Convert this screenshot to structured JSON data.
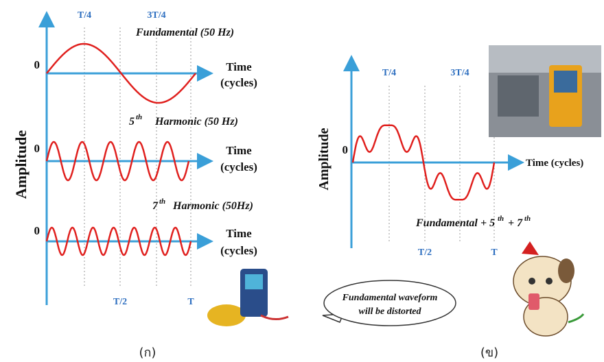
{
  "left": {
    "axis_label": "Amplitude",
    "caption": "(ก)",
    "markers": {
      "t4": "T/4",
      "t34": "3T/4",
      "t2": "T/2",
      "t": "T"
    },
    "waves": [
      {
        "zero": "0",
        "title": "Fundamental (50 Hz)",
        "x_label": [
          "Time",
          "(cycles)"
        ]
      },
      {
        "zero": "0",
        "order": "5",
        "sup": "th",
        "title": "Harmonic (50 Hz)",
        "x_label": [
          "Time",
          "(cycles)"
        ]
      },
      {
        "zero": "0",
        "order": "7",
        "sup": "th",
        "title": "Harmonic (50Hz)",
        "x_label": [
          "Time",
          "(cycles)"
        ]
      }
    ]
  },
  "right": {
    "axis_label": "Amplitude",
    "caption": "(ข)",
    "zero": "0",
    "x_label": "Time (cycles)",
    "markers": {
      "t4": "T/4",
      "t34": "3T/4",
      "t2": "T/2",
      "t": "T"
    },
    "formula": [
      "Fundamental",
      "+ 5",
      "th",
      "+ 7",
      "th"
    ],
    "bubble": [
      "Fundamental waveform",
      "will be distorted"
    ]
  }
}
